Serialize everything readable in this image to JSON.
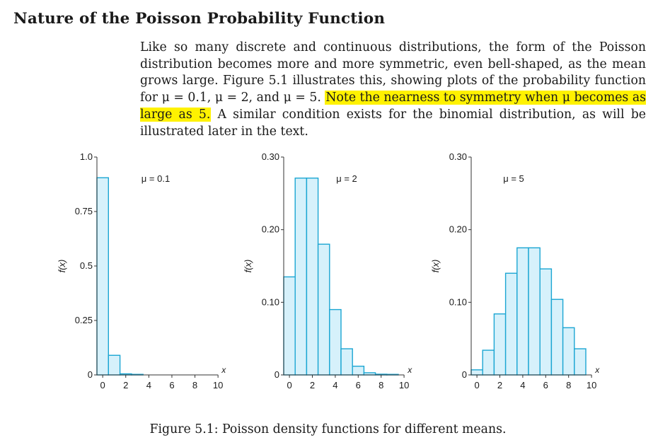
{
  "section": {
    "heading": "Nature of the Poisson Probability Function",
    "paragraph_before": "Like so many discrete and continuous distributions, the form of the Poisson distribution becomes more and more symmetric, even bell-shaped, as the mean grows large. Figure 5.1 illustrates this, showing plots of the probability function for μ = 0.1, μ = 2, and μ = 5. ",
    "paragraph_highlight": "Note the nearness to symmetry when μ becomes as large as 5.",
    "paragraph_after": " A similar condition exists for the binomial distribution, as will be illustrated later in the text.",
    "highlight_color": "#fff200"
  },
  "figure": {
    "caption": "Figure 5.1: Poisson density functions for different means.",
    "bar_fill": "#d6f1fb",
    "bar_stroke": "#1ba6d3"
  },
  "chart_data": [
    {
      "type": "bar",
      "label": "μ = 0.1",
      "xlabel": "x",
      "ylabel": "f(x)",
      "ylim": [
        0,
        1.0
      ],
      "yticks": [
        0,
        0.25,
        0.5,
        0.75,
        1.0
      ],
      "ytick_labels": [
        "0",
        "0.25",
        "0.5",
        "0.75",
        "1.0"
      ],
      "xticks": [
        0,
        2,
        4,
        6,
        8,
        10
      ],
      "x": [
        0,
        1,
        2,
        3,
        4,
        5,
        6,
        7,
        8,
        9,
        10
      ],
      "values": [
        0.905,
        0.09,
        0.005,
        0.0002,
        0,
        0,
        0,
        0,
        0,
        0,
        0
      ]
    },
    {
      "type": "bar",
      "label": "μ = 2",
      "xlabel": "x",
      "ylabel": "f(x)",
      "ylim": [
        0,
        0.3
      ],
      "yticks": [
        0,
        0.1,
        0.2,
        0.3
      ],
      "ytick_labels": [
        "0",
        "0.10",
        "0.20",
        "0.30"
      ],
      "xticks": [
        0,
        2,
        4,
        6,
        8,
        10
      ],
      "x": [
        0,
        1,
        2,
        3,
        4,
        5,
        6,
        7,
        8,
        9,
        10
      ],
      "values": [
        0.135,
        0.271,
        0.271,
        0.18,
        0.09,
        0.036,
        0.012,
        0.003,
        0.001,
        0.0002,
        0
      ]
    },
    {
      "type": "bar",
      "label": "μ = 5",
      "xlabel": "x",
      "ylabel": "f(x)",
      "ylim": [
        0,
        0.3
      ],
      "yticks": [
        0,
        0.1,
        0.2,
        0.3
      ],
      "ytick_labels": [
        "0",
        "0.10",
        "0.20",
        "0.30"
      ],
      "xticks": [
        0,
        2,
        4,
        6,
        8,
        10
      ],
      "x": [
        0,
        1,
        2,
        3,
        4,
        5,
        6,
        7,
        8,
        9,
        10
      ],
      "values": [
        0.007,
        0.034,
        0.084,
        0.14,
        0.175,
        0.175,
        0.146,
        0.104,
        0.065,
        0.036,
        0
      ]
    }
  ]
}
